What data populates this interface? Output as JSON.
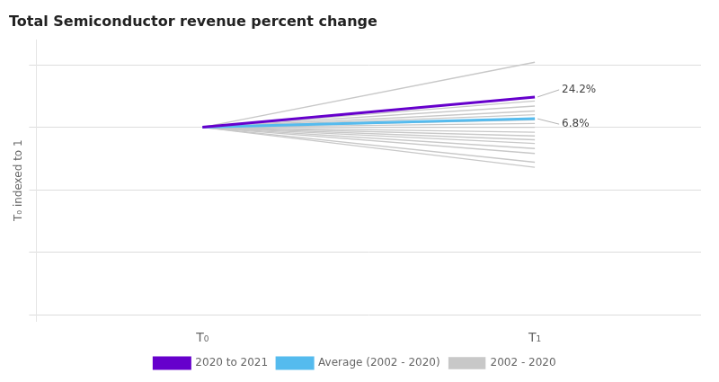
{
  "chart_data": {
    "type": "line",
    "title": "Total Semiconductor revenue percent change",
    "ylabel": "T₀ indexed to 1",
    "categories": [
      "T₀",
      "T₁"
    ],
    "series": [
      {
        "name": "2002 - 2020",
        "color": "#c8c8c8",
        "values": [
          1.0,
          1.52
        ]
      },
      {
        "name": "2002 - 2020",
        "color": "#c8c8c8",
        "values": [
          1.0,
          1.21
        ]
      },
      {
        "name": "2002 - 2020",
        "color": "#c8c8c8",
        "values": [
          1.0,
          1.17
        ]
      },
      {
        "name": "2002 - 2020",
        "color": "#c8c8c8",
        "values": [
          1.0,
          1.13
        ]
      },
      {
        "name": "2002 - 2020",
        "color": "#c8c8c8",
        "values": [
          1.0,
          1.1
        ]
      },
      {
        "name": "2002 - 2020",
        "color": "#c8c8c8",
        "values": [
          1.0,
          1.06
        ]
      },
      {
        "name": "2002 - 2020",
        "color": "#c8c8c8",
        "values": [
          1.0,
          1.03
        ]
      },
      {
        "name": "2002 - 2020",
        "color": "#c8c8c8",
        "values": [
          1.0,
          1.0
        ]
      },
      {
        "name": "2002 - 2020",
        "color": "#c8c8c8",
        "values": [
          1.0,
          0.96
        ]
      },
      {
        "name": "2002 - 2020",
        "color": "#c8c8c8",
        "values": [
          1.0,
          0.93
        ]
      },
      {
        "name": "2002 - 2020",
        "color": "#c8c8c8",
        "values": [
          1.0,
          0.9
        ]
      },
      {
        "name": "2002 - 2020",
        "color": "#c8c8c8",
        "values": [
          1.0,
          0.87
        ]
      },
      {
        "name": "2002 - 2020",
        "color": "#c8c8c8",
        "values": [
          1.0,
          0.83
        ]
      },
      {
        "name": "2002 - 2020",
        "color": "#c8c8c8",
        "values": [
          1.0,
          0.79
        ]
      },
      {
        "name": "2002 - 2020",
        "color": "#c8c8c8",
        "values": [
          1.0,
          0.72
        ]
      },
      {
        "name": "2002 - 2020",
        "color": "#c8c8c8",
        "values": [
          1.0,
          0.68
        ]
      },
      {
        "name": "2020 to 2021",
        "color": "#6600cc",
        "values": [
          1.0,
          1.242
        ]
      },
      {
        "name": "Average (2002 - 2020)",
        "color": "#55bbee",
        "values": [
          1.0,
          1.068
        ]
      }
    ],
    "annotations": [
      {
        "text": "24.2%",
        "x": "T₁",
        "y": 1.242
      },
      {
        "text": "6.8%",
        "x": "T₁",
        "y": 1.068
      }
    ],
    "ylim": [
      -0.55,
      1.7
    ],
    "yticks": [
      -0.5,
      0.0,
      0.5,
      1.0,
      1.5
    ],
    "grid": true,
    "tick_labels": "x",
    "legend": "bottom"
  }
}
